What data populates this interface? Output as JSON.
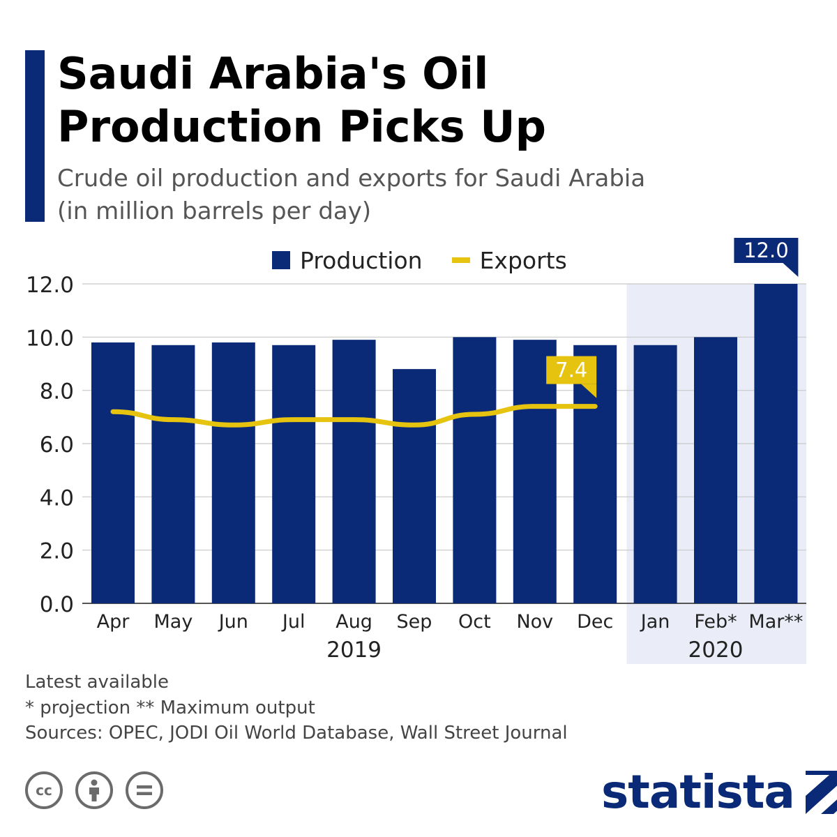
{
  "header": {
    "title_line1": "Saudi Arabia's Oil",
    "title_line2": "Production Picks Up",
    "subtitle_line1": "Crude oil production and exports for Saudi Arabia",
    "subtitle_line2": "(in million barrels per day)"
  },
  "legend": {
    "production": "Production",
    "exports": "Exports"
  },
  "colors": {
    "production": "#0a2a78",
    "exports": "#e5c30e",
    "highlight_band": "#eaedf7",
    "grid": "#c8c8c8"
  },
  "chart_data": {
    "type": "bar",
    "categories": [
      "Apr",
      "May",
      "Jun",
      "Jul",
      "Aug",
      "Sep",
      "Oct",
      "Nov",
      "Dec",
      "Jan",
      "Feb*",
      "Mar**"
    ],
    "year_groups": [
      {
        "label": "2019",
        "from": 0,
        "to": 8
      },
      {
        "label": "2020",
        "from": 9,
        "to": 11,
        "highlighted": true
      }
    ],
    "series": [
      {
        "name": "Production",
        "kind": "bar",
        "values": [
          9.8,
          9.7,
          9.8,
          9.7,
          9.9,
          8.8,
          10.0,
          9.9,
          9.7,
          9.7,
          10.0,
          12.0
        ]
      },
      {
        "name": "Exports",
        "kind": "line",
        "values": [
          7.2,
          6.9,
          6.7,
          6.9,
          6.9,
          6.7,
          7.1,
          7.4,
          7.4,
          null,
          null,
          null
        ]
      }
    ],
    "callouts": [
      {
        "series": "Production",
        "index": 11,
        "text": "12.0"
      },
      {
        "series": "Exports",
        "index": 8,
        "text": "7.4"
      }
    ],
    "y_ticks": [
      "0.0",
      "2.0",
      "4.0",
      "6.0",
      "8.0",
      "10.0",
      "12.0"
    ],
    "ylim": [
      0,
      12
    ],
    "grid": true,
    "legend_position": "top-center"
  },
  "notes": {
    "line1": "Latest available",
    "line2": "* projection ** Maximum output",
    "line3": "Sources: OPEC, JODI Oil World Database, Wall Street Journal"
  },
  "license_icons": [
    "cc-icon",
    "attribution-icon",
    "no-derivatives-icon"
  ],
  "brand": {
    "name": "statista"
  }
}
